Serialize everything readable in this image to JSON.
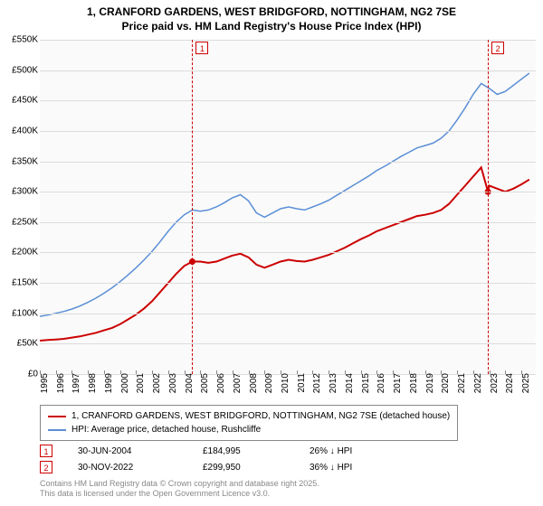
{
  "title_line1": "1, CRANFORD GARDENS, WEST BRIDGFORD, NOTTINGHAM, NG2 7SE",
  "title_line2": "Price paid vs. HM Land Registry's House Price Index (HPI)",
  "chart": {
    "type": "line",
    "background_color": "#fafafa",
    "grid_color": "#dcdcdc",
    "ylim": [
      0,
      550000
    ],
    "ytick_step": 50000,
    "ytick_labels": [
      "£0",
      "£50K",
      "£100K",
      "£150K",
      "£200K",
      "£250K",
      "£300K",
      "£350K",
      "£400K",
      "£450K",
      "£500K",
      "£550K"
    ],
    "x_years": [
      1995,
      1996,
      1997,
      1998,
      1999,
      2000,
      2001,
      2002,
      2003,
      2004,
      2005,
      2006,
      2007,
      2008,
      2009,
      2010,
      2011,
      2012,
      2013,
      2014,
      2015,
      2016,
      2017,
      2018,
      2019,
      2020,
      2021,
      2022,
      2023,
      2024,
      2025
    ],
    "series": [
      {
        "name": "1, CRANFORD GARDENS, WEST BRIDGFORD, NOTTINGHAM, NG2 7SE (detached house)",
        "color": "#cc0000",
        "line_width": 2,
        "data": [
          [
            1995.0,
            55000
          ],
          [
            1995.5,
            56000
          ],
          [
            1996.0,
            57000
          ],
          [
            1996.5,
            58000
          ],
          [
            1997.0,
            60000
          ],
          [
            1997.5,
            62000
          ],
          [
            1998.0,
            65000
          ],
          [
            1998.5,
            68000
          ],
          [
            1999.0,
            72000
          ],
          [
            1999.5,
            76000
          ],
          [
            2000.0,
            82000
          ],
          [
            2000.5,
            90000
          ],
          [
            2001.0,
            98000
          ],
          [
            2001.5,
            108000
          ],
          [
            2002.0,
            120000
          ],
          [
            2002.5,
            135000
          ],
          [
            2003.0,
            150000
          ],
          [
            2003.5,
            165000
          ],
          [
            2004.0,
            178000
          ],
          [
            2004.5,
            184995
          ],
          [
            2005.0,
            185000
          ],
          [
            2005.5,
            183000
          ],
          [
            2006.0,
            185000
          ],
          [
            2006.5,
            190000
          ],
          [
            2007.0,
            195000
          ],
          [
            2007.5,
            198000
          ],
          [
            2008.0,
            192000
          ],
          [
            2008.5,
            180000
          ],
          [
            2009.0,
            175000
          ],
          [
            2009.5,
            180000
          ],
          [
            2010.0,
            185000
          ],
          [
            2010.5,
            188000
          ],
          [
            2011.0,
            186000
          ],
          [
            2011.5,
            185000
          ],
          [
            2012.0,
            188000
          ],
          [
            2012.5,
            192000
          ],
          [
            2013.0,
            196000
          ],
          [
            2013.5,
            202000
          ],
          [
            2014.0,
            208000
          ],
          [
            2014.5,
            215000
          ],
          [
            2015.0,
            222000
          ],
          [
            2015.5,
            228000
          ],
          [
            2016.0,
            235000
          ],
          [
            2016.5,
            240000
          ],
          [
            2017.0,
            245000
          ],
          [
            2017.5,
            250000
          ],
          [
            2018.0,
            255000
          ],
          [
            2018.5,
            260000
          ],
          [
            2019.0,
            262000
          ],
          [
            2019.5,
            265000
          ],
          [
            2020.0,
            270000
          ],
          [
            2020.5,
            280000
          ],
          [
            2021.0,
            295000
          ],
          [
            2021.5,
            310000
          ],
          [
            2022.0,
            325000
          ],
          [
            2022.5,
            340000
          ],
          [
            2022.92,
            299950
          ],
          [
            2023.0,
            310000
          ],
          [
            2023.5,
            305000
          ],
          [
            2024.0,
            300000
          ],
          [
            2024.5,
            305000
          ],
          [
            2025.0,
            312000
          ],
          [
            2025.5,
            320000
          ]
        ]
      },
      {
        "name": "HPI: Average price, detached house, Rushcliffe",
        "color": "#5b8fd6",
        "line_width": 1.5,
        "data": [
          [
            1995.0,
            95000
          ],
          [
            1995.5,
            97000
          ],
          [
            1996.0,
            100000
          ],
          [
            1996.5,
            103000
          ],
          [
            1997.0,
            107000
          ],
          [
            1997.5,
            112000
          ],
          [
            1998.0,
            118000
          ],
          [
            1998.5,
            125000
          ],
          [
            1999.0,
            133000
          ],
          [
            1999.5,
            142000
          ],
          [
            2000.0,
            152000
          ],
          [
            2000.5,
            163000
          ],
          [
            2001.0,
            175000
          ],
          [
            2001.5,
            188000
          ],
          [
            2002.0,
            202000
          ],
          [
            2002.5,
            218000
          ],
          [
            2003.0,
            235000
          ],
          [
            2003.5,
            250000
          ],
          [
            2004.0,
            262000
          ],
          [
            2004.5,
            270000
          ],
          [
            2005.0,
            268000
          ],
          [
            2005.5,
            270000
          ],
          [
            2006.0,
            275000
          ],
          [
            2006.5,
            282000
          ],
          [
            2007.0,
            290000
          ],
          [
            2007.5,
            295000
          ],
          [
            2008.0,
            285000
          ],
          [
            2008.5,
            265000
          ],
          [
            2009.0,
            258000
          ],
          [
            2009.5,
            265000
          ],
          [
            2010.0,
            272000
          ],
          [
            2010.5,
            275000
          ],
          [
            2011.0,
            272000
          ],
          [
            2011.5,
            270000
          ],
          [
            2012.0,
            275000
          ],
          [
            2012.5,
            280000
          ],
          [
            2013.0,
            286000
          ],
          [
            2013.5,
            294000
          ],
          [
            2014.0,
            302000
          ],
          [
            2014.5,
            310000
          ],
          [
            2015.0,
            318000
          ],
          [
            2015.5,
            326000
          ],
          [
            2016.0,
            335000
          ],
          [
            2016.5,
            342000
          ],
          [
            2017.0,
            350000
          ],
          [
            2017.5,
            358000
          ],
          [
            2018.0,
            365000
          ],
          [
            2018.5,
            372000
          ],
          [
            2019.0,
            376000
          ],
          [
            2019.5,
            380000
          ],
          [
            2020.0,
            388000
          ],
          [
            2020.5,
            400000
          ],
          [
            2021.0,
            418000
          ],
          [
            2021.5,
            438000
          ],
          [
            2022.0,
            460000
          ],
          [
            2022.5,
            478000
          ],
          [
            2023.0,
            470000
          ],
          [
            2023.5,
            460000
          ],
          [
            2024.0,
            465000
          ],
          [
            2024.5,
            475000
          ],
          [
            2025.0,
            485000
          ],
          [
            2025.5,
            495000
          ]
        ]
      }
    ],
    "markers": [
      {
        "label": "1",
        "x": 2004.5,
        "color": "#cc0000",
        "date": "30-JUN-2004",
        "price": "£184,995",
        "pct": "26% ↓ HPI"
      },
      {
        "label": "2",
        "x": 2022.92,
        "color": "#cc0000",
        "date": "30-NOV-2022",
        "price": "£299,950",
        "pct": "36% ↓ HPI"
      }
    ]
  },
  "footer_line1": "Contains HM Land Registry data © Crown copyright and database right 2025.",
  "footer_line2": "This data is licensed under the Open Government Licence v3.0."
}
